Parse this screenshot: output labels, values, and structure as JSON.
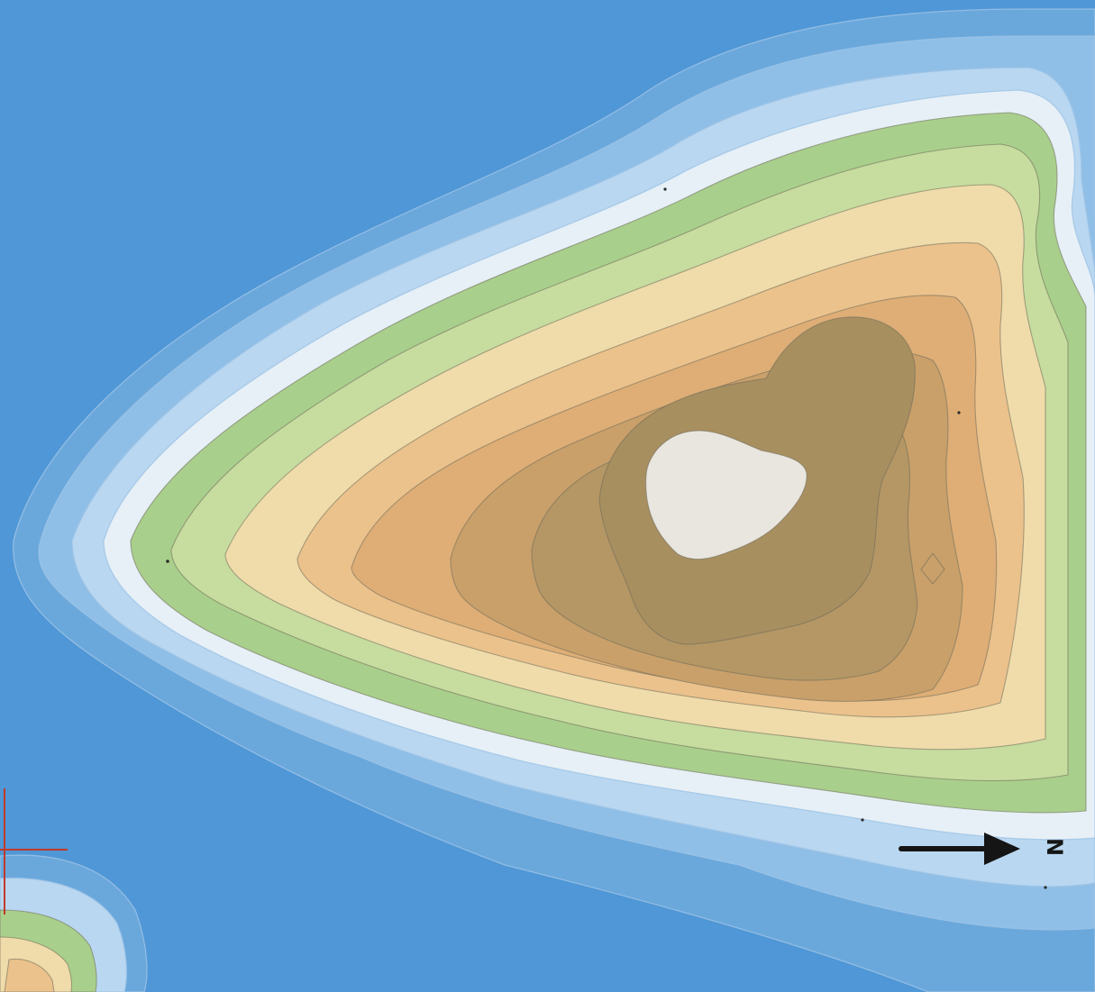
{
  "map": {
    "type": "contour-relief",
    "colors": {
      "sea": "#4f97d6",
      "deep_shelf": "#6aa8dc",
      "shelf": "#8fbfe7",
      "shallow": "#b9d7f0",
      "shore": "#e6f0f6",
      "lowland": "#a9cf8c",
      "low_hills": "#c7dc9f",
      "hills": "#efdcaa",
      "upland": "#ebc28c",
      "highland": "#deae76",
      "mountain": "#c9a06a",
      "high_mountain": "#b49765",
      "summit": "#e9e6df"
    },
    "north_arrow": {
      "label": "N",
      "direction": "right",
      "icon": "north-arrow-icon"
    },
    "reference_mark": {
      "icon": "crosshair-icon",
      "color": "#c0392b"
    }
  }
}
